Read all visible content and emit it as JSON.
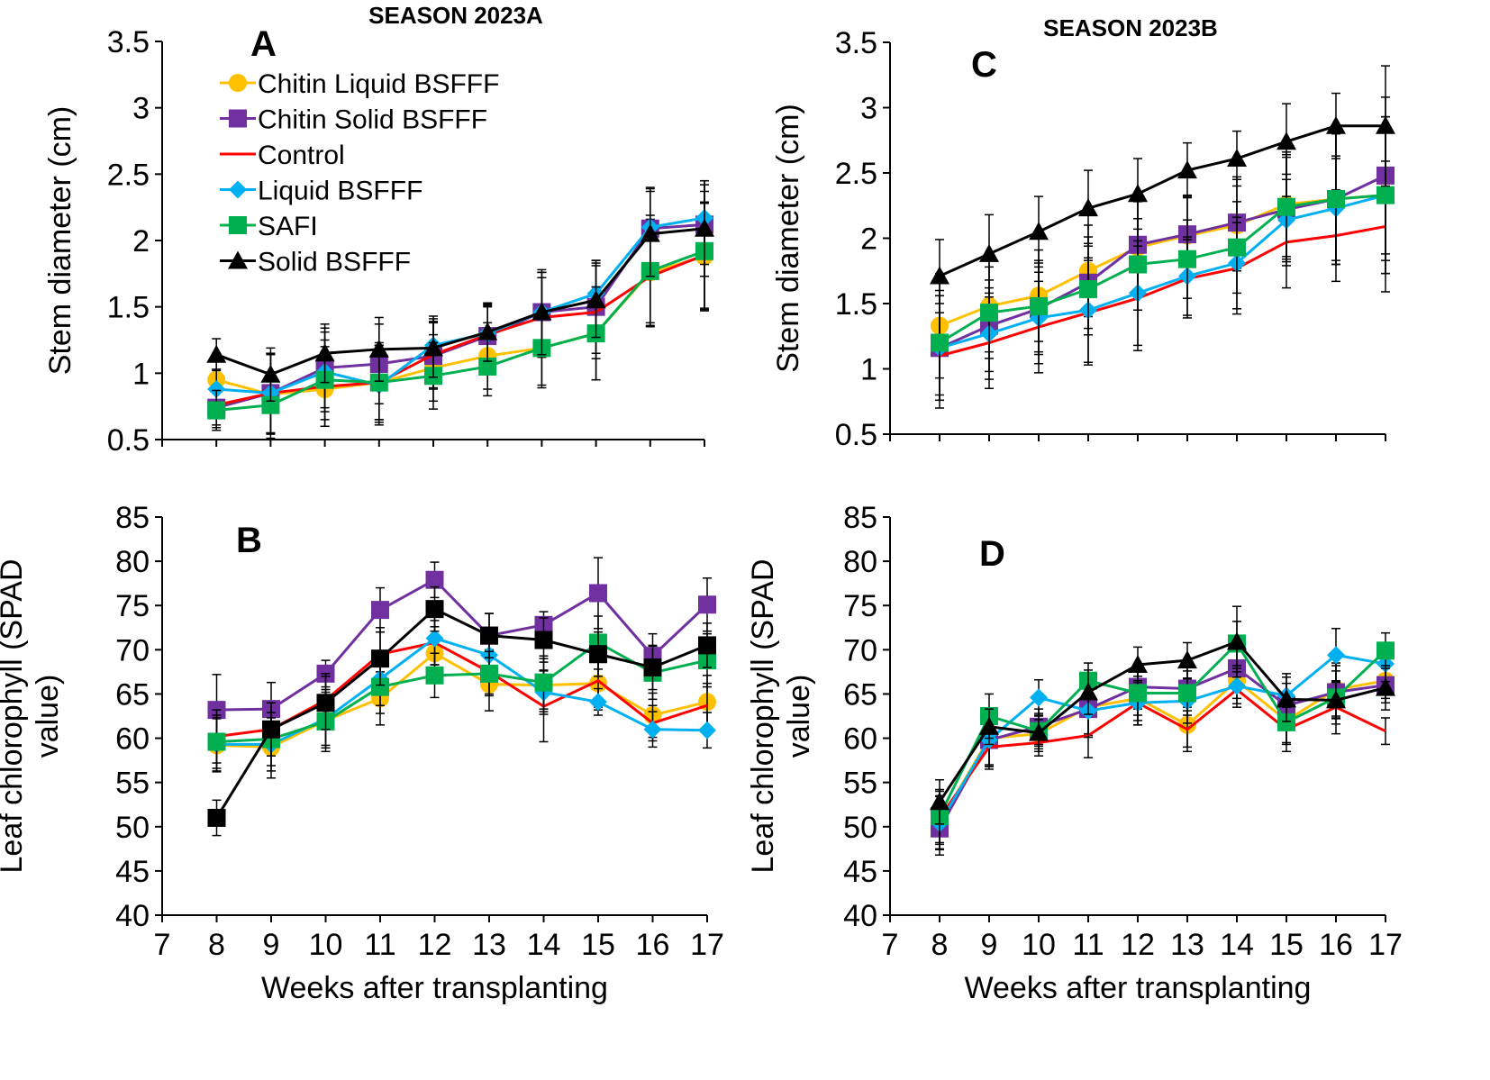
{
  "colors": {
    "chitin_liquid": "#FFC000",
    "chitin_solid": "#7030A0",
    "control": "#FF0000",
    "liquid": "#00B0F0",
    "safi": "#00B050",
    "solid": "#000000"
  },
  "chart_data": [
    {
      "id": "A",
      "type": "line",
      "panel_label": "A",
      "title": "SEASON 2023A",
      "xlabel": "",
      "ylabel": "Stem diameter (cm)",
      "xlim": [
        7,
        17
      ],
      "ylim": [
        0.5,
        3.5
      ],
      "xticks": [
        "7",
        "8",
        "9",
        "10",
        "11",
        "12",
        "13",
        "14",
        "15",
        "16",
        "17"
      ],
      "yticks": [
        "0.5",
        "1",
        "1.5",
        "2",
        "2.5",
        "3",
        "3.5"
      ],
      "x": [
        8,
        9,
        10,
        11,
        12,
        13,
        14,
        15,
        16,
        17
      ],
      "legend": {
        "placement": "top-left",
        "entries": [
          "Chitin Liquid BSFFF",
          "Chitin Solid BSFFF",
          "Control",
          "Liquid BSFFF",
          "SAFI",
          "Solid BSFFF"
        ]
      },
      "series": [
        {
          "name": "Chitin Liquid BSFFF",
          "color": "#FFC000",
          "marker": "circle",
          "values": [
            0.95,
            0.84,
            0.88,
            0.93,
            1.04,
            1.13,
            1.19,
            1.3,
            1.76,
            1.88
          ],
          "err": [
            0.18,
            0.3,
            0.28,
            0.28,
            0.25,
            0.25,
            0.3,
            0.35,
            0.4,
            0.4
          ]
        },
        {
          "name": "Chitin Solid BSFFF",
          "color": "#7030A0",
          "marker": "square",
          "values": [
            0.74,
            0.85,
            1.04,
            1.07,
            1.13,
            1.28,
            1.46,
            1.5,
            2.09,
            2.12
          ],
          "err": [
            0.15,
            0.3,
            0.3,
            0.3,
            0.25,
            0.22,
            0.3,
            0.35,
            0.3,
            0.3
          ]
        },
        {
          "name": "Control",
          "color": "#FF0000",
          "marker": "none",
          "values": [
            0.76,
            0.85,
            0.9,
            0.93,
            1.14,
            1.29,
            1.42,
            1.46,
            1.73,
            1.89
          ],
          "err": [
            0.15,
            0.3,
            0.3,
            0.28,
            0.25,
            0.22,
            0.3,
            0.35,
            0.35,
            0.4
          ]
        },
        {
          "name": "Liquid BSFFF",
          "color": "#00B0F0",
          "marker": "diamond",
          "values": [
            0.88,
            0.85,
            1.01,
            0.91,
            1.21,
            1.3,
            1.46,
            1.6,
            2.1,
            2.17
          ],
          "err": [
            0.15,
            0.3,
            0.3,
            0.3,
            0.22,
            0.22,
            0.3,
            0.25,
            0.3,
            0.28
          ]
        },
        {
          "name": "SAFI",
          "color": "#00B050",
          "marker": "square",
          "values": [
            0.72,
            0.76,
            0.95,
            0.93,
            0.98,
            1.05,
            1.19,
            1.3,
            1.77,
            1.92
          ],
          "err": [
            0.15,
            0.25,
            0.3,
            0.3,
            0.25,
            0.22,
            0.28,
            0.35,
            0.42,
            0.45
          ]
        },
        {
          "name": "Solid BSFFF",
          "color": "#000000",
          "marker": "triangle",
          "values": [
            1.14,
            0.99,
            1.15,
            1.18,
            1.19,
            1.31,
            1.46,
            1.55,
            2.05,
            2.09
          ],
          "err": [
            0.12,
            0.2,
            0.22,
            0.24,
            0.22,
            0.22,
            0.32,
            0.28,
            0.32,
            0.36
          ]
        }
      ]
    },
    {
      "id": "B",
      "type": "line",
      "panel_label": "B",
      "title": "",
      "xlabel": "Weeks after transplanting",
      "ylabel": "Leaf chlorophyll (SPAD value)",
      "ylabel_lines": [
        "Leaf chlorophyll (SPAD",
        "value)"
      ],
      "xlim": [
        7,
        17
      ],
      "ylim": [
        40,
        85
      ],
      "xticks": [
        "7",
        "8",
        "9",
        "10",
        "11",
        "12",
        "13",
        "14",
        "15",
        "16",
        "17"
      ],
      "yticks": [
        "40",
        "45",
        "50",
        "55",
        "60",
        "65",
        "70",
        "75",
        "80",
        "85"
      ],
      "x": [
        8,
        9,
        10,
        11,
        12,
        13,
        14,
        15,
        16,
        17
      ],
      "series": [
        {
          "name": "Chitin Liquid BSFFF",
          "color": "#FFC000",
          "marker": "circle",
          "values": [
            59.2,
            59.0,
            62.0,
            64.5,
            69.6,
            66.1,
            66.0,
            66.2,
            62.6,
            64.1
          ],
          "err": [
            3,
            3.5,
            3.5,
            3,
            3,
            3,
            3,
            3,
            2.5,
            3
          ]
        },
        {
          "name": "Chitin Solid BSFFF",
          "color": "#7030A0",
          "marker": "square",
          "values": [
            63.2,
            63.3,
            67.3,
            74.5,
            77.9,
            71.6,
            72.8,
            76.4,
            69.3,
            75.1
          ],
          "err": [
            4,
            3,
            1.5,
            2.5,
            2,
            2.5,
            1.5,
            4,
            2.5,
            3
          ]
        },
        {
          "name": "Control",
          "color": "#FF0000",
          "marker": "none",
          "values": [
            60.2,
            61.0,
            64.3,
            69.5,
            70.8,
            67.5,
            63.6,
            66.5,
            61.7,
            63.7
          ],
          "err": [
            3,
            3,
            3,
            3,
            2.5,
            2.5,
            4,
            3,
            2,
            2.5
          ]
        },
        {
          "name": "Liquid BSFFF",
          "color": "#00B0F0",
          "marker": "diamond",
          "values": [
            59.3,
            59.3,
            62.2,
            66.7,
            71.3,
            69.4,
            65.2,
            64.1,
            61.0,
            60.9
          ],
          "err": [
            3,
            3,
            3,
            3,
            3,
            2.5,
            2.5,
            1.5,
            2,
            2
          ]
        },
        {
          "name": "SAFI",
          "color": "#00B050",
          "marker": "square",
          "values": [
            59.6,
            59.9,
            61.9,
            65.8,
            67.1,
            67.3,
            66.3,
            70.8,
            67.4,
            68.8
          ],
          "err": [
            3,
            3,
            3,
            3,
            2.5,
            2.5,
            3,
            3,
            3,
            3
          ]
        },
        {
          "name": "Solid BSFFF",
          "color": "#000000",
          "marker": "square",
          "values": [
            51.0,
            61.0,
            64.0,
            69.0,
            74.6,
            71.6,
            71.1,
            69.5,
            68.0,
            70.5
          ],
          "err": [
            2,
            3,
            3,
            3,
            2.5,
            2.5,
            2.5,
            2.5,
            2.5,
            2.5
          ]
        }
      ]
    },
    {
      "id": "C",
      "type": "line",
      "panel_label": "C",
      "title": "SEASON 2023B",
      "xlabel": "",
      "ylabel": "Stem diameter (cm)",
      "xlim": [
        7,
        17
      ],
      "ylim": [
        0.5,
        3.5
      ],
      "xticks": [
        "7",
        "8",
        "9",
        "10",
        "11",
        "12",
        "13",
        "14",
        "15",
        "16",
        "17"
      ],
      "yticks": [
        "0.5",
        "1",
        "1.5",
        "2",
        "2.5",
        "3",
        "3.5"
      ],
      "x": [
        8,
        9,
        10,
        11,
        12,
        13,
        14,
        15,
        16,
        17
      ],
      "series": [
        {
          "name": "Chitin Liquid BSFFF",
          "color": "#FFC000",
          "marker": "circle",
          "values": [
            1.33,
            1.48,
            1.56,
            1.75,
            1.93,
            2.02,
            2.1,
            2.26,
            2.3,
            2.33
          ],
          "err": [
            0.4,
            0.35,
            0.35,
            0.35,
            0.35,
            0.3,
            0.35,
            0.4,
            0.5,
            0.6
          ]
        },
        {
          "name": "Chitin Solid BSFFF",
          "color": "#7030A0",
          "marker": "square",
          "values": [
            1.16,
            1.33,
            1.46,
            1.66,
            1.95,
            2.03,
            2.12,
            2.22,
            2.3,
            2.48
          ],
          "err": [
            0.4,
            0.35,
            0.35,
            0.35,
            0.35,
            0.3,
            0.35,
            0.4,
            0.5,
            0.6
          ]
        },
        {
          "name": "Control",
          "color": "#FF0000",
          "marker": "none",
          "values": [
            1.1,
            1.2,
            1.32,
            1.43,
            1.54,
            1.69,
            1.77,
            1.97,
            2.02,
            2.09
          ],
          "err": [
            0.4,
            0.35,
            0.35,
            0.4,
            0.4,
            0.3,
            0.35,
            0.35,
            0.35,
            0.5
          ]
        },
        {
          "name": "Liquid BSFFF",
          "color": "#00B0F0",
          "marker": "diamond",
          "values": [
            1.16,
            1.27,
            1.39,
            1.45,
            1.58,
            1.71,
            1.81,
            2.14,
            2.23,
            2.33
          ],
          "err": [
            0.4,
            0.35,
            0.35,
            0.4,
            0.4,
            0.3,
            0.35,
            0.35,
            0.4,
            0.5
          ]
        },
        {
          "name": "SAFI",
          "color": "#00B050",
          "marker": "square",
          "values": [
            1.2,
            1.43,
            1.48,
            1.61,
            1.8,
            1.84,
            1.93,
            2.24,
            2.3,
            2.33
          ],
          "err": [
            0.4,
            0.35,
            0.35,
            0.35,
            0.35,
            0.3,
            0.35,
            0.4,
            0.5,
            0.6
          ]
        },
        {
          "name": "Solid BSFFF",
          "color": "#000000",
          "marker": "triangle",
          "values": [
            1.71,
            1.88,
            2.05,
            2.23,
            2.34,
            2.52,
            2.61,
            2.74,
            2.86,
            2.86
          ],
          "err": [
            0.28,
            0.3,
            0.27,
            0.29,
            0.27,
            0.21,
            0.21,
            0.29,
            0.25,
            0.46
          ]
        }
      ]
    },
    {
      "id": "D",
      "type": "line",
      "panel_label": "D",
      "title": "",
      "xlabel": "Weeks after transplanting",
      "ylabel": "Leaf chlorophyll (SPAD value)",
      "ylabel_lines": [
        "Leaf chlorophyll (SPAD",
        "value)"
      ],
      "xlim": [
        7,
        17
      ],
      "ylim": [
        40,
        85
      ],
      "xticks": [
        "7",
        "8",
        "9",
        "10",
        "11",
        "12",
        "13",
        "14",
        "15",
        "16",
        "17"
      ],
      "yticks": [
        "40",
        "45",
        "50",
        "55",
        "60",
        "65",
        "70",
        "75",
        "80",
        "85"
      ],
      "x": [
        8,
        9,
        10,
        11,
        12,
        13,
        14,
        15,
        16,
        17
      ],
      "series": [
        {
          "name": "Chitin Liquid BSFFF",
          "color": "#FFC000",
          "marker": "circle",
          "values": [
            50.5,
            60.0,
            60.5,
            63.5,
            64.5,
            61.5,
            66.5,
            62.0,
            65.5,
            66.5
          ],
          "err": [
            3,
            3,
            2,
            3,
            2.5,
            2.5,
            2,
            2.5,
            3,
            2
          ]
        },
        {
          "name": "Chitin Solid BSFFF",
          "color": "#7030A0",
          "marker": "square",
          "values": [
            49.8,
            59.8,
            61.3,
            63.3,
            65.8,
            65.6,
            67.9,
            63.7,
            65.2,
            66.0
          ],
          "err": [
            3,
            3,
            2,
            3,
            2.5,
            2.5,
            2.5,
            2.5,
            3,
            2
          ]
        },
        {
          "name": "Control",
          "color": "#FF0000",
          "marker": "none",
          "values": [
            51.0,
            59.0,
            59.5,
            60.3,
            64.0,
            61.0,
            65.5,
            61.0,
            63.5,
            60.8
          ],
          "err": [
            3,
            2.5,
            1.5,
            2.5,
            2.5,
            2.5,
            2,
            2.5,
            3,
            1.5
          ]
        },
        {
          "name": "Liquid BSFFF",
          "color": "#00B0F0",
          "marker": "diamond",
          "values": [
            50.4,
            59.8,
            64.6,
            63.1,
            64.0,
            64.2,
            65.9,
            64.8,
            69.4,
            68.4
          ],
          "err": [
            3,
            3,
            2,
            3,
            2.5,
            2.5,
            2,
            2.5,
            3,
            2
          ]
        },
        {
          "name": "SAFI",
          "color": "#00B050",
          "marker": "square",
          "values": [
            51.2,
            62.5,
            60.8,
            66.5,
            65.1,
            65.1,
            70.7,
            61.8,
            64.6,
            69.9
          ],
          "err": [
            3,
            2.5,
            2,
            2,
            2.5,
            2.5,
            2.5,
            2.5,
            3,
            2
          ]
        },
        {
          "name": "Solid BSFFF",
          "color": "#000000",
          "marker": "triangle",
          "values": [
            52.8,
            61.3,
            60.6,
            65.2,
            68.3,
            68.8,
            70.9,
            64.4,
            64.3,
            65.7
          ],
          "err": [
            2.5,
            2,
            1.5,
            2.5,
            2,
            2,
            4,
            2.5,
            2,
            2.5
          ]
        }
      ]
    }
  ]
}
